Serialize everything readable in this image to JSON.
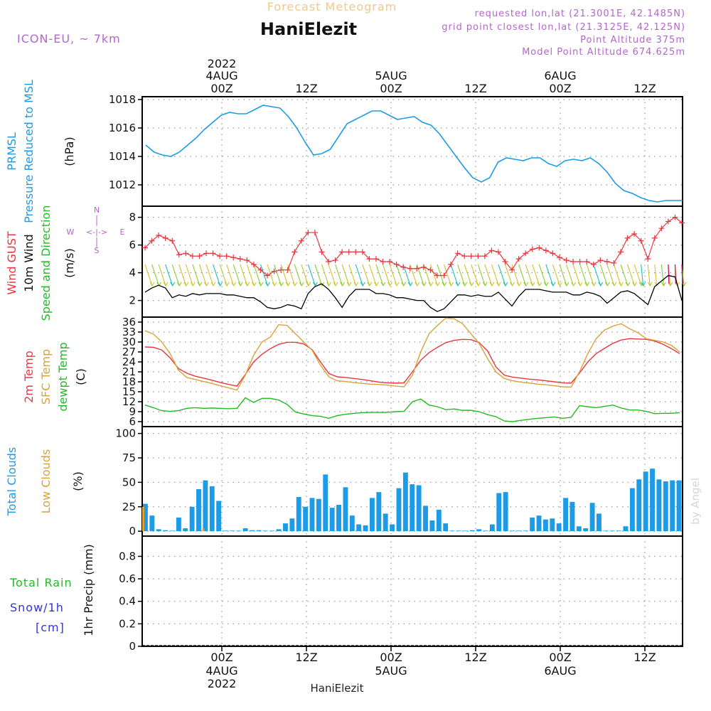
{
  "header": {
    "subtitle": "Forecast Meteogram",
    "location": "HaniElezit",
    "model": "ICON-EU, ~ 7km",
    "requested": "requested lon,lat (21.3001E, 42.1485N)",
    "gridpoint": "grid point closest lon,lat (21.3125E, 42.125N)",
    "point_alt": "Point Altitude 375m",
    "model_alt": "Model Point Altitude 674.625m"
  },
  "footer": {
    "location": "HaniElezit",
    "credit": "by Angel"
  },
  "time_axis": {
    "ticks": [
      "00Z",
      "12Z",
      "00Z",
      "12Z",
      "00Z",
      "12Z"
    ],
    "dates": [
      "4AUG",
      "5AUG",
      "6AUG"
    ],
    "year": "2022"
  },
  "colors": {
    "pressure": "#1e9be6",
    "gust": "#e8373f",
    "wind": "#000000",
    "t2m": "#e8373f",
    "sfc": "#d9a23a",
    "dew": "#22bb22",
    "clouds": "#1e9be6",
    "lowclouds": "#d9a23a",
    "rain": "#22bb22",
    "snow": "#3333dd",
    "title": "#b366cc",
    "subtitle": "#f0c98c"
  },
  "panel_labels": {
    "pressure": [
      "PRMSL",
      "Pressure Reduced to MSL"
    ],
    "pressure_unit": "(hPa)",
    "wind": [
      "Wind GUST",
      "10m Wind",
      "Speed and Direction"
    ],
    "wind_unit": "(m/s)",
    "compass": {
      "n": "N",
      "s": "S",
      "e": "E",
      "w": "W",
      "h": "<-|->",
      "v1": "^",
      "v2": "v"
    },
    "temp": [
      "2m Temp",
      "SFC Temp",
      "dewpt Temp"
    ],
    "temp_unit": "(C)",
    "clouds": [
      "Total Clouds",
      "Low Clouds"
    ],
    "clouds_unit": "(%)",
    "precip": [
      "Total  Rain",
      "Snow/1h",
      "[cm]"
    ],
    "precip_unit": "1hr Precip (mm)"
  },
  "chart_data": [
    {
      "type": "line",
      "id": "pressure",
      "ylabel": "(hPa)",
      "x": [
        0,
        2,
        4,
        6,
        8,
        10,
        12,
        14,
        16,
        18,
        20,
        22,
        24,
        26,
        28,
        30,
        32,
        34,
        36,
        38,
        40,
        42,
        44,
        46,
        48,
        50,
        52,
        54,
        56,
        58,
        60,
        62,
        64,
        66,
        68,
        70,
        72,
        74,
        76,
        78,
        80,
        82,
        84,
        86,
        88,
        90,
        92,
        94,
        96,
        98,
        100,
        102,
        104,
        106,
        108,
        110,
        112,
        114,
        116,
        118,
        120,
        122,
        124,
        126,
        128
      ],
      "values": [
        1014.8,
        1014.3,
        1014.1,
        1014.0,
        1014.3,
        1014.8,
        1015.3,
        1015.9,
        1016.4,
        1016.9,
        1017.1,
        1017.0,
        1017.0,
        1017.3,
        1017.6,
        1017.5,
        1017.4,
        1016.8,
        1016.0,
        1015.0,
        1014.1,
        1014.2,
        1014.5,
        1015.4,
        1016.3,
        1016.6,
        1016.9,
        1017.2,
        1017.2,
        1016.9,
        1016.6,
        1016.7,
        1016.8,
        1016.4,
        1016.2,
        1015.6,
        1014.8,
        1014.0,
        1013.2,
        1012.5,
        1012.2,
        1012.5,
        1013.6,
        1013.9,
        1013.8,
        1013.7,
        1013.9,
        1013.9,
        1013.5,
        1013.3,
        1013.7,
        1013.8,
        1013.7,
        1013.9,
        1013.5,
        1012.9,
        1012.1,
        1011.6,
        1011.4,
        1011.1,
        1010.9,
        1010.8,
        1010.9,
        1010.9,
        1010.9
      ],
      "yticks": [
        1012,
        1014,
        1016,
        1018
      ],
      "ylim": [
        1010.5,
        1018.2
      ]
    },
    {
      "type": "line",
      "id": "wind",
      "ylabel": "(m/s)",
      "series": [
        {
          "name": "Wind GUST",
          "values": [
            5.8,
            6.3,
            6.7,
            6.5,
            6.3,
            5.3,
            5.4,
            5.2,
            5.2,
            5.4,
            5.4,
            5.2,
            5.2,
            5.1,
            5.0,
            4.9,
            4.6,
            4.2,
            3.8,
            4.1,
            4.2,
            4.2,
            5.5,
            6.3,
            6.9,
            6.9,
            5.5,
            4.8,
            4.9,
            5.5,
            5.5,
            5.5,
            5.5,
            5.0,
            5.0,
            4.8,
            4.8,
            4.6,
            4.4,
            4.3,
            4.3,
            4.4,
            4.2,
            3.8,
            3.8,
            4.6,
            5.4,
            5.2,
            5.2,
            5.2,
            5.2,
            5.6,
            5.5,
            4.8,
            4.2,
            5.0,
            5.4,
            5.7,
            5.8,
            5.6,
            5.4,
            5.1,
            4.9,
            4.8,
            4.8,
            4.8,
            4.6,
            4.9,
            4.8,
            4.7,
            5.5,
            6.5,
            6.8,
            6.3,
            5.0,
            6.5,
            7.2,
            7.7,
            8.0,
            7.6
          ]
        },
        {
          "name": "10m Wind",
          "values": [
            2.6,
            2.9,
            3.1,
            2.9,
            2.2,
            2.4,
            2.3,
            2.5,
            2.4,
            2.5,
            2.5,
            2.5,
            2.4,
            2.4,
            2.3,
            2.2,
            2.2,
            1.9,
            1.5,
            1.4,
            1.5,
            1.7,
            1.6,
            1.4,
            2.5,
            3.0,
            3.2,
            2.8,
            2.2,
            1.5,
            2.3,
            2.8,
            2.8,
            2.8,
            2.5,
            2.5,
            2.4,
            2.2,
            2.2,
            2.1,
            2.0,
            2.0,
            1.5,
            1.2,
            1.4,
            1.9,
            2.4,
            2.4,
            2.3,
            2.4,
            2.3,
            2.3,
            2.6,
            2.1,
            1.6,
            2.3,
            2.8,
            2.8,
            2.8,
            2.7,
            2.6,
            2.6,
            2.6,
            2.4,
            2.4,
            2.6,
            2.5,
            2.3,
            1.8,
            2.2,
            2.6,
            2.7,
            2.5,
            2.1,
            1.7,
            3.0,
            3.4,
            3.8,
            3.7,
            2.0
          ]
        }
      ],
      "x_step": 1.6,
      "yticks": [
        2,
        4,
        6,
        8
      ],
      "ylim": [
        0.8,
        8.8
      ]
    },
    {
      "type": "line",
      "id": "temperature",
      "ylabel": "(C)",
      "x": [
        0,
        2,
        4,
        6,
        8,
        10,
        12,
        14,
        16,
        18,
        20,
        22,
        24,
        26,
        28,
        30,
        32,
        34,
        36,
        38,
        40,
        42,
        44,
        46,
        48,
        50,
        52,
        54,
        56,
        58,
        60,
        62,
        64,
        66,
        68,
        70,
        72,
        74,
        76,
        78,
        80,
        82,
        84,
        86,
        88,
        90,
        92,
        94,
        96,
        98,
        100,
        102,
        104,
        106,
        108,
        110,
        112,
        114,
        116,
        118,
        120,
        122,
        124,
        126,
        128
      ],
      "series": [
        {
          "name": "2m Temp",
          "values": [
            28.5,
            28.4,
            27.6,
            25.2,
            22.0,
            20.6,
            19.7,
            19.1,
            18.5,
            17.8,
            17.2,
            16.7,
            20.2,
            24.0,
            26.3,
            28.0,
            29.3,
            29.9,
            29.9,
            29.4,
            27.7,
            24.0,
            20.5,
            19.5,
            19.3,
            19.0,
            18.7,
            18.3,
            17.9,
            17.7,
            17.6,
            17.7,
            21.0,
            24.5,
            26.8,
            28.4,
            29.8,
            30.5,
            30.8,
            30.7,
            29.8,
            27.3,
            22.5,
            20.0,
            19.4,
            19.1,
            18.8,
            18.6,
            18.3,
            18.0,
            17.7,
            17.6,
            20.6,
            24.0,
            26.5,
            28.1,
            29.6,
            30.6,
            31.0,
            30.9,
            30.8,
            30.3,
            29.3,
            28.0,
            26.5
          ]
        },
        {
          "name": "SFC Temp",
          "values": [
            33.4,
            32.4,
            30.0,
            26.5,
            21.5,
            19.3,
            18.7,
            18.1,
            17.5,
            16.8,
            16.2,
            15.5,
            20.0,
            26.0,
            30.0,
            31.5,
            35.2,
            35.0,
            32.5,
            30.0,
            27.5,
            23.0,
            19.5,
            18.3,
            18.1,
            17.8,
            17.5,
            17.3,
            17.2,
            17.0,
            16.7,
            16.5,
            20.0,
            27.0,
            32.5,
            35.0,
            37.2,
            37.0,
            35.5,
            32.5,
            29.5,
            25.0,
            21.0,
            19.0,
            18.3,
            17.9,
            17.6,
            17.3,
            17.1,
            16.8,
            16.5,
            16.4,
            21.0,
            26.5,
            31.0,
            33.6,
            34.8,
            35.5,
            34.0,
            32.8,
            31.0,
            30.5,
            30.0,
            29.0,
            27.0
          ]
        },
        {
          "name": "dewpt Temp",
          "values": [
            11.0,
            10.2,
            9.3,
            9.1,
            9.3,
            10.0,
            10.2,
            10.0,
            10.1,
            10.0,
            9.9,
            10.0,
            13.2,
            11.8,
            13.0,
            13.0,
            12.5,
            11.2,
            8.9,
            8.3,
            7.8,
            7.6,
            7.0,
            7.8,
            8.2,
            8.5,
            8.7,
            8.8,
            8.8,
            8.8,
            9.0,
            9.1,
            12.0,
            12.8,
            11.0,
            10.5,
            9.6,
            9.8,
            9.4,
            9.4,
            9.0,
            8.1,
            7.5,
            6.2,
            6.0,
            6.4,
            6.7,
            7.0,
            7.2,
            7.4,
            7.0,
            7.3,
            10.8,
            10.5,
            10.2,
            10.6,
            11.0,
            10.1,
            9.5,
            9.5,
            9.1,
            8.4,
            8.5,
            8.5,
            8.7
          ]
        }
      ],
      "yticks": [
        6,
        9,
        12,
        15,
        18,
        21,
        24,
        27,
        30,
        33,
        36
      ],
      "ylim": [
        4.5,
        37.5
      ]
    },
    {
      "type": "bar",
      "id": "clouds",
      "ylabel": "(%)",
      "series": [
        {
          "name": "Total Clouds",
          "values": [
            28,
            16,
            2,
            1,
            0,
            14,
            3,
            25,
            43,
            52,
            46,
            31,
            0,
            0,
            0,
            3,
            1,
            1,
            0,
            0,
            2,
            8,
            13,
            35,
            25,
            34,
            33,
            58,
            24,
            27,
            45,
            16,
            7,
            6,
            34,
            40,
            18,
            7,
            44,
            60,
            48,
            47,
            26,
            11,
            22,
            8,
            0,
            0,
            0,
            1,
            2,
            0,
            7,
            39,
            40,
            0,
            0,
            0,
            14,
            16,
            12,
            13,
            8,
            34,
            30,
            5,
            3,
            29,
            18,
            0,
            0,
            0,
            5,
            44,
            53,
            61,
            64,
            53,
            51,
            52,
            52
          ]
        },
        {
          "name": "Low Clouds",
          "values": [
            25,
            0,
            0,
            0,
            0,
            0,
            0,
            0,
            0,
            3,
            0,
            0,
            0,
            0,
            0,
            0,
            0,
            0,
            0,
            0,
            0,
            0,
            0,
            0,
            0,
            0,
            0,
            0,
            0,
            0,
            0,
            0,
            0,
            0,
            0,
            0,
            0,
            0,
            0,
            0,
            0,
            0,
            0,
            0,
            0,
            0,
            0,
            0,
            0,
            0,
            0,
            0,
            0,
            0,
            0,
            0,
            0,
            0,
            0,
            0,
            0,
            0,
            0,
            0,
            0,
            0,
            0,
            0,
            0,
            0,
            0,
            0,
            0,
            0,
            0,
            0,
            0,
            0,
            0,
            0,
            0
          ]
        }
      ],
      "x_step": 1.6,
      "yticks": [
        0,
        25,
        50,
        75,
        100
      ],
      "ylim": [
        -5,
        107
      ]
    },
    {
      "type": "bar",
      "id": "precipitation",
      "ylabel": "1hr Precip (mm)",
      "series": [
        {
          "name": "Total Rain",
          "values": []
        },
        {
          "name": "Snow/1h",
          "values": []
        }
      ],
      "yticks": [
        0,
        0.2,
        0.4,
        0.6,
        0.8
      ],
      "ytick_labels": [
        "0",
        "0.2",
        "0.4",
        "0.6",
        "0.8"
      ],
      "ylim": [
        0,
        0.98
      ]
    }
  ]
}
